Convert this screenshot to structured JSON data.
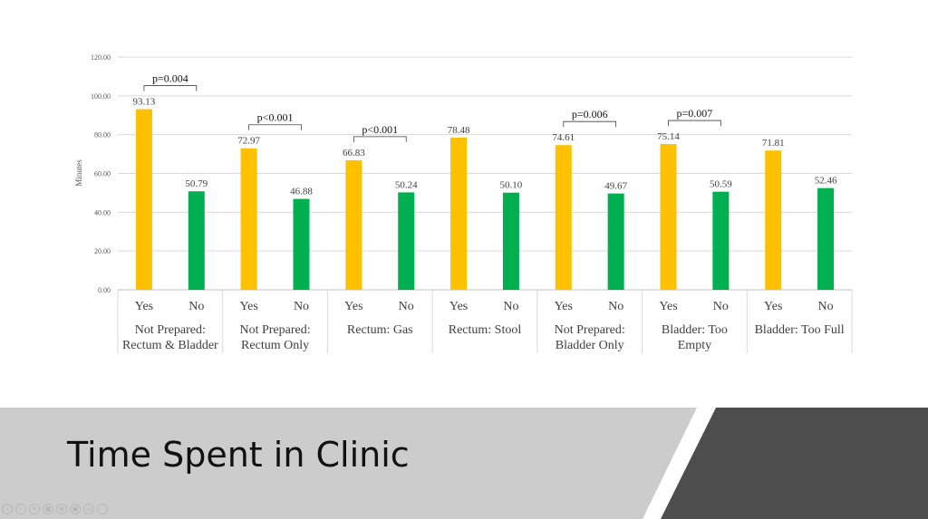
{
  "slide": {
    "title": "Time Spent in Clinic",
    "colors": {
      "banner_light": "#cccccc",
      "banner_dark": "#4d4d4d",
      "yes": "#ffc000",
      "no": "#00b050"
    },
    "toolbar_icons": [
      "prev-icon",
      "next-icon",
      "pen-icon",
      "grid-icon",
      "zoom-icon",
      "camera-icon",
      "subtitles-icon",
      "more-icon"
    ]
  },
  "chart_data": {
    "type": "bar",
    "ylabel": "Minutes",
    "ylim": [
      0,
      120
    ],
    "yticks": [
      "0.00",
      "20.00",
      "40.00",
      "60.00",
      "80.00",
      "100.00",
      "120.00"
    ],
    "grid": true,
    "groups": [
      {
        "name": [
          "Not Prepared:",
          "Rectum & Bladder"
        ],
        "categories": [
          "Yes",
          "No"
        ],
        "values": [
          93.13,
          50.79
        ],
        "labels": [
          "93.13",
          "50.79"
        ],
        "pvalue": "p=0.004"
      },
      {
        "name": [
          "Not Prepared:",
          "Rectum Only"
        ],
        "categories": [
          "Yes",
          "No"
        ],
        "values": [
          72.97,
          46.88
        ],
        "labels": [
          "72.97",
          "46.88"
        ],
        "pvalue": "p<0.001"
      },
      {
        "name": [
          "Rectum: Gas"
        ],
        "categories": [
          "Yes",
          "No"
        ],
        "values": [
          66.83,
          50.24
        ],
        "labels": [
          "66.83",
          "50.24"
        ],
        "pvalue": "p<0.001"
      },
      {
        "name": [
          "Rectum: Stool"
        ],
        "categories": [
          "Yes",
          "No"
        ],
        "values": [
          78.48,
          50.1
        ],
        "labels": [
          "78.48",
          "50.10"
        ],
        "pvalue": ""
      },
      {
        "name": [
          "Not Prepared:",
          "Bladder Only"
        ],
        "categories": [
          "Yes",
          "No"
        ],
        "values": [
          74.61,
          49.67
        ],
        "labels": [
          "74.61",
          "49.67"
        ],
        "pvalue": "p=0.006"
      },
      {
        "name": [
          "Bladder: Too",
          "Empty"
        ],
        "categories": [
          "Yes",
          "No"
        ],
        "values": [
          75.14,
          50.59
        ],
        "labels": [
          "75.14",
          "50.59"
        ],
        "pvalue": "p=0.007"
      },
      {
        "name": [
          "Bladder: Too Full"
        ],
        "categories": [
          "Yes",
          "No"
        ],
        "values": [
          71.81,
          52.46
        ],
        "labels": [
          "71.81",
          "52.46"
        ],
        "pvalue": ""
      }
    ]
  }
}
